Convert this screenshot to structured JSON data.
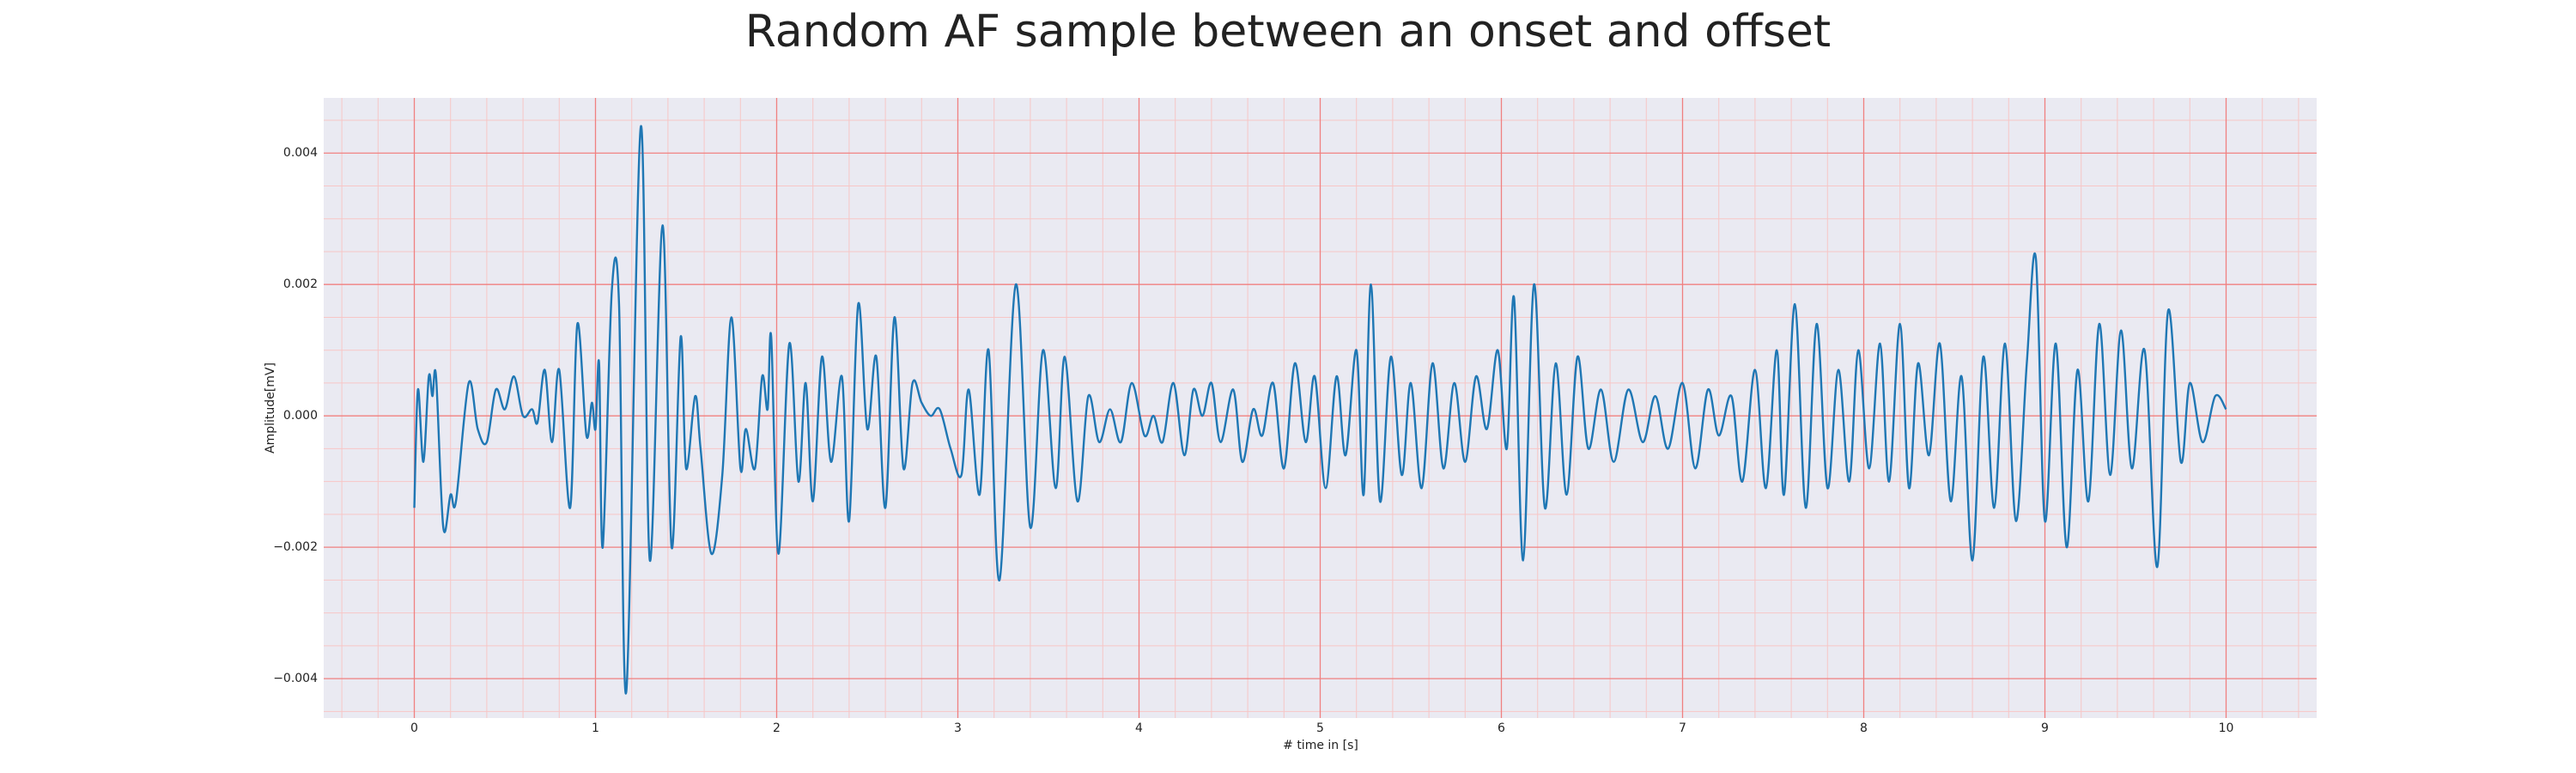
{
  "chart_data": {
    "type": "line",
    "title": "Random AF sample between an onset and offset",
    "x_label": "# time in [s]",
    "y_label": "Amplitude[mV]",
    "xlim": [
      -0.5,
      10.5
    ],
    "ylim": [
      -0.0046,
      0.00484
    ],
    "xticks": [
      0,
      1,
      2,
      3,
      4,
      5,
      6,
      7,
      8,
      9,
      10
    ],
    "yticks": [
      {
        "value": -0.004,
        "label": "−0.004"
      },
      {
        "value": -0.002,
        "label": "−0.002"
      },
      {
        "value": 0,
        "label": "0.000"
      },
      0.002,
      0.004
    ],
    "grid": true,
    "grid_color": "#f08080",
    "minor_grid": true,
    "minor_grid_color": "#f7c6c6",
    "background": "#eaeaf2",
    "xminorticks": [
      -0.4,
      -0.2,
      0.2,
      0.4,
      0.6,
      0.8,
      1.2,
      1.4,
      1.6,
      1.8,
      2.2,
      2.4,
      2.6,
      2.8,
      3.2,
      3.4,
      3.6,
      3.8,
      4.2,
      4.4,
      4.6,
      4.8,
      5.2,
      5.4,
      5.6,
      5.8,
      6.2,
      6.4,
      6.6,
      6.8,
      7.2,
      7.4,
      7.6,
      7.8,
      8.2,
      8.4,
      8.6,
      8.8,
      9.2,
      9.4,
      9.6,
      9.8,
      10.2,
      10.4
    ],
    "yminorticks": [
      -0.0045,
      -0.0035,
      -0.003,
      -0.0025,
      -0.0015,
      -0.001,
      -0.0005,
      0.0005,
      0.001,
      0.0015,
      0.0025,
      0.003,
      0.0035,
      0.0045
    ],
    "series": [
      {
        "color": "#1f77b4",
        "x": [
          0,
          0.02,
          0.05,
          0.08,
          0.1,
          0.12,
          0.16,
          0.2,
          0.23,
          0.3,
          0.35,
          0.4,
          0.45,
          0.5,
          0.55,
          0.6,
          0.65,
          0.68,
          0.72,
          0.76,
          0.8,
          0.86,
          0.9,
          0.95,
          0.98,
          1.0,
          1.02,
          1.04,
          1.09,
          1.13,
          1.17,
          1.25,
          1.3,
          1.37,
          1.42,
          1.47,
          1.5,
          1.55,
          1.58,
          1.64,
          1.7,
          1.75,
          1.8,
          1.83,
          1.88,
          1.92,
          1.95,
          1.97,
          2.01,
          2.07,
          2.12,
          2.16,
          2.2,
          2.25,
          2.3,
          2.36,
          2.4,
          2.45,
          2.5,
          2.55,
          2.6,
          2.65,
          2.7,
          2.75,
          2.8,
          2.85,
          2.9,
          2.96,
          3.02,
          3.06,
          3.12,
          3.17,
          3.23,
          3.32,
          3.4,
          3.47,
          3.54,
          3.59,
          3.66,
          3.72,
          3.78,
          3.84,
          3.9,
          3.96,
          4.03,
          4.08,
          4.13,
          4.19,
          4.25,
          4.3,
          4.35,
          4.4,
          4.45,
          4.52,
          4.57,
          4.63,
          4.68,
          4.74,
          4.8,
          4.86,
          4.92,
          4.97,
          5.03,
          5.09,
          5.14,
          5.2,
          5.24,
          5.28,
          5.33,
          5.39,
          5.45,
          5.5,
          5.56,
          5.62,
          5.68,
          5.74,
          5.8,
          5.86,
          5.92,
          5.98,
          6.03,
          6.07,
          6.12,
          6.18,
          6.24,
          6.3,
          6.36,
          6.42,
          6.48,
          6.55,
          6.62,
          6.7,
          6.78,
          6.85,
          6.92,
          7.0,
          7.07,
          7.14,
          7.2,
          7.27,
          7.33,
          7.4,
          7.46,
          7.52,
          7.56,
          7.62,
          7.68,
          7.74,
          7.8,
          7.86,
          7.92,
          7.97,
          8.03,
          8.09,
          8.14,
          8.2,
          8.25,
          8.3,
          8.36,
          8.42,
          8.48,
          8.54,
          8.6,
          8.66,
          8.72,
          8.78,
          8.84,
          8.9,
          8.95,
          9.0,
          9.06,
          9.12,
          9.18,
          9.24,
          9.3,
          9.36,
          9.42,
          9.48,
          9.55,
          9.62,
          9.68,
          9.75,
          9.8,
          9.87,
          9.94,
          10.0
        ],
        "values": [
          -0.0014,
          0.0004,
          -0.0007,
          0.0006,
          0.0003,
          0.0006,
          -0.0017,
          -0.0012,
          -0.0013,
          0.0005,
          -0.0002,
          -0.0004,
          0.0004,
          0.0001,
          0.0006,
          0,
          0.0001,
          -0.0001,
          0.0007,
          -0.0004,
          0.0007,
          -0.0014,
          0.0014,
          -0.0003,
          0.0002,
          -0.0002,
          0.0008,
          -0.002,
          0.0019,
          0.0017,
          -0.0042,
          0.0044,
          -0.0022,
          0.0029,
          -0.002,
          0.0012,
          -0.0008,
          0.0003,
          -0.0005,
          -0.0021,
          -0.0009,
          0.0015,
          -0.0008,
          -0.0002,
          -0.0008,
          0.0006,
          0.0001,
          0.0012,
          -0.0021,
          0.0011,
          -0.001,
          0.0005,
          -0.0013,
          0.0009,
          -0.0007,
          0.0006,
          -0.0016,
          0.0017,
          -0.0002,
          0.0009,
          -0.0014,
          0.0015,
          -0.0008,
          0.0005,
          0.0002,
          0,
          0.0001,
          -0.0005,
          -0.0009,
          0.0004,
          -0.0012,
          0.001,
          -0.0025,
          0.002,
          -0.0017,
          0.001,
          -0.0011,
          0.0009,
          -0.0013,
          0.0003,
          -0.0004,
          0.0001,
          -0.0004,
          0.0005,
          -0.0003,
          0,
          -0.0004,
          0.0005,
          -0.0006,
          0.0004,
          0,
          0.0005,
          -0.0004,
          0.0004,
          -0.0007,
          0.0001,
          -0.0003,
          0.0005,
          -0.0008,
          0.0008,
          -0.0004,
          0.0006,
          -0.0011,
          0.0006,
          -0.0006,
          0.001,
          -0.0012,
          0.002,
          -0.0013,
          0.0009,
          -0.0009,
          0.0005,
          -0.0011,
          0.0008,
          -0.0008,
          0.0005,
          -0.0007,
          0.0006,
          -0.0002,
          0.001,
          -0.0005,
          0.0018,
          -0.0022,
          0.002,
          -0.0014,
          0.0008,
          -0.0012,
          0.0009,
          -0.0005,
          0.0004,
          -0.0007,
          0.0004,
          -0.0004,
          0.0003,
          -0.0005,
          0.0005,
          -0.0008,
          0.0004,
          -0.0003,
          0.0003,
          -0.001,
          0.0007,
          -0.0011,
          0.001,
          -0.0012,
          0.0017,
          -0.0014,
          0.0014,
          -0.0011,
          0.0007,
          -0.001,
          0.001,
          -0.0008,
          0.0011,
          -0.001,
          0.0014,
          -0.0011,
          0.0008,
          -0.0006,
          0.0011,
          -0.0013,
          0.0006,
          -0.0022,
          0.0009,
          -0.0014,
          0.0011,
          -0.0016,
          0.0008,
          0.0024,
          -0.0016,
          0.0011,
          -0.002,
          0.0007,
          -0.0013,
          0.0014,
          -0.0009,
          0.0013,
          -0.0008,
          0.001,
          -0.0023,
          0.0016,
          -0.0007,
          0.0005,
          -0.0004,
          0.0003,
          0.0001
        ]
      }
    ]
  }
}
